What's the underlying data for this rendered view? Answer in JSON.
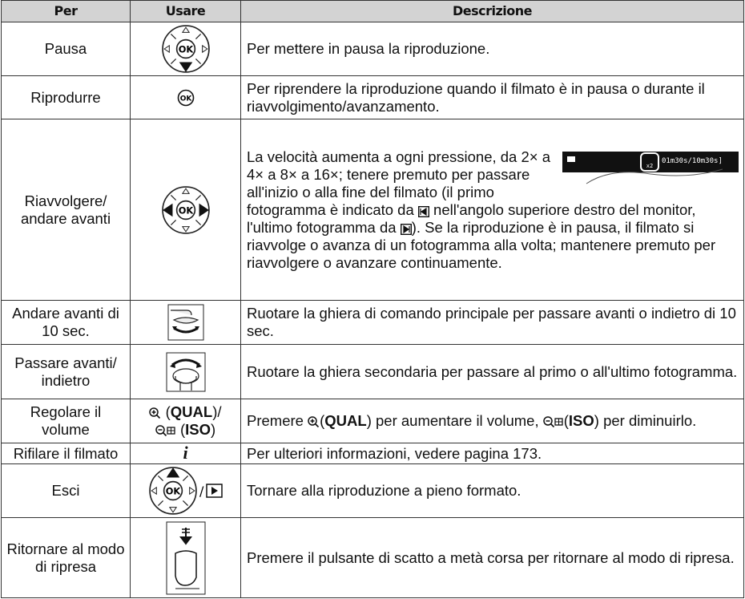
{
  "table": {
    "header": [
      "Per",
      "Usare",
      "Descrizione"
    ],
    "rows": [
      {
        "per": "Pausa",
        "description": "Per mettere in pausa la riproduzione."
      },
      {
        "per": "Riprodurre",
        "description": "Per riprendere la riproduzione quando il filmato è in pausa o durante il riavvolgimento/avanzamento."
      },
      {
        "per": "Riavvolgere/ andare avanti",
        "description": [
          "La velocità aumenta a ogni pressione, da 2× a 4× a 8× a 16×; tenere premuto per passare all'inizio o alla fine del filmato (il primo fotogramma è indicato da",
          "nell'angolo superiore destro del monitor, l'ultimo fotogramma da",
          "). Se la riproduzione è in pausa, il filmato si riavvolge o avanza di un fotogramma alla volta; mantenere premuto per riavvolgere o avanzare continuamente."
        ],
        "screen": {
          "speed": "x2",
          "time": "01m30s/10m30s]"
        }
      },
      {
        "per": "Andare avanti di 10 sec.",
        "description": "Ruotare la ghiera di comando principale per passare avanti o indietro di 10 sec."
      },
      {
        "per": "Passare avanti/ indietro",
        "description": "Ruotare la ghiera secondaria per passare al primo o all'ultimo fotogramma."
      },
      {
        "per": "Regolare il volume",
        "usage": [
          "(",
          "QUAL",
          ")/",
          "(",
          "ISO",
          ")"
        ],
        "description": [
          "Premere",
          "(",
          "QUAL",
          ") per aumentare il volume,",
          "(",
          "ISO",
          ") per diminuirlo."
        ]
      },
      {
        "per": "Rifilare il filmato",
        "usage": "i",
        "description": "Per ulteriori informazioni, vedere pagina 173."
      },
      {
        "per": "Esci",
        "description": "Tornare alla riproduzione a pieno formato."
      },
      {
        "per": "Ritornare al modo di ripresa",
        "description": "Premere il pulsante di scatto a metà corsa per ritornare al modo di ripresa."
      }
    ]
  }
}
